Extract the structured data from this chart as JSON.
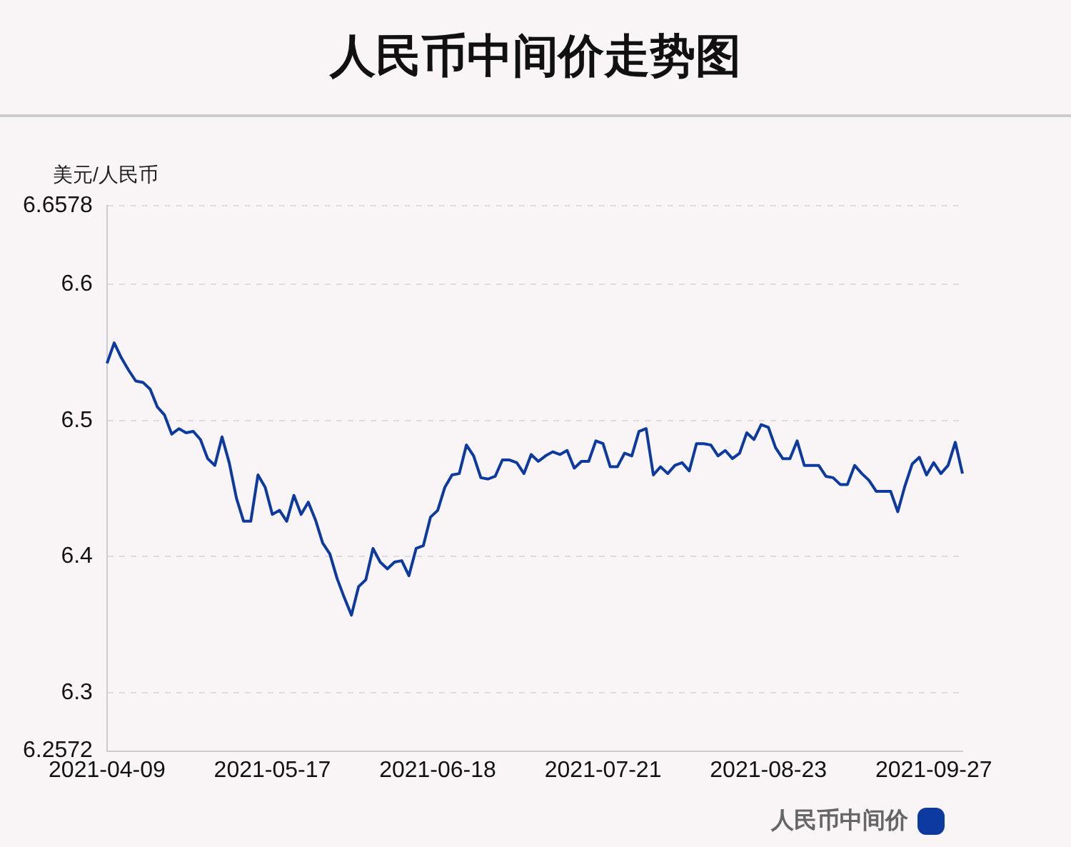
{
  "chart_data": {
    "type": "line",
    "title": "人民币中间价走势图",
    "ylabel": "美元/人民币",
    "categories": [
      "2021-04-09",
      null,
      null,
      null,
      null,
      null,
      null,
      null,
      null,
      null,
      null,
      null,
      null,
      null,
      null,
      null,
      null,
      null,
      null,
      null,
      null,
      null,
      null,
      "2021-05-17",
      null,
      null,
      null,
      null,
      null,
      null,
      null,
      null,
      null,
      null,
      null,
      null,
      null,
      null,
      null,
      null,
      null,
      null,
      null,
      null,
      null,
      null,
      "2021-06-18",
      null,
      null,
      null,
      null,
      null,
      null,
      null,
      null,
      null,
      null,
      null,
      null,
      null,
      null,
      null,
      null,
      null,
      null,
      null,
      null,
      null,
      null,
      "2021-07-21",
      null,
      null,
      null,
      null,
      null,
      null,
      null,
      null,
      null,
      null,
      null,
      null,
      null,
      null,
      null,
      null,
      null,
      null,
      null,
      null,
      null,
      null,
      "2021-08-23",
      null,
      null,
      null,
      null,
      null,
      null,
      null,
      null,
      null,
      null,
      null,
      null,
      null,
      null,
      null,
      null,
      null,
      null,
      null,
      null,
      null,
      null,
      "2021-09-27",
      null,
      null,
      null,
      null
    ],
    "series": [
      {
        "name": "人民币中间价",
        "color": "#0d3a9e",
        "values": [
          6.542,
          6.557,
          6.546,
          6.537,
          6.529,
          6.528,
          6.523,
          6.51,
          6.504,
          6.49,
          6.494,
          6.491,
          6.492,
          6.486,
          6.472,
          6.467,
          6.488,
          6.469,
          6.443,
          6.426,
          6.426,
          6.46,
          6.451,
          6.431,
          6.434,
          6.426,
          6.445,
          6.431,
          6.44,
          6.427,
          6.41,
          6.402,
          6.384,
          6.37,
          6.357,
          6.378,
          6.383,
          6.406,
          6.396,
          6.391,
          6.396,
          6.397,
          6.386,
          6.406,
          6.408,
          6.429,
          6.434,
          6.451,
          6.46,
          6.461,
          6.482,
          6.474,
          6.458,
          6.457,
          6.459,
          6.471,
          6.471,
          6.469,
          6.461,
          6.475,
          6.47,
          6.474,
          6.477,
          6.475,
          6.478,
          6.465,
          6.47,
          6.47,
          6.485,
          6.483,
          6.466,
          6.466,
          6.476,
          6.474,
          6.492,
          6.494,
          6.46,
          6.466,
          6.461,
          6.467,
          6.469,
          6.463,
          6.483,
          6.483,
          6.482,
          6.474,
          6.478,
          6.472,
          6.476,
          6.491,
          6.486,
          6.497,
          6.495,
          6.48,
          6.472,
          6.472,
          6.485,
          6.467,
          6.467,
          6.467,
          6.459,
          6.458,
          6.453,
          6.453,
          6.467,
          6.461,
          6.456,
          6.448,
          6.448,
          6.448,
          6.433,
          6.452,
          6.468,
          6.473,
          6.46,
          6.469,
          6.461,
          6.467,
          6.484,
          6.461
        ]
      }
    ],
    "ylim": [
      6.2572,
      6.6578
    ],
    "yticks": [
      6.2572,
      6.3,
      6.4,
      6.5,
      6.6,
      6.6578
    ],
    "grid": "y",
    "legend": "bottom right"
  }
}
